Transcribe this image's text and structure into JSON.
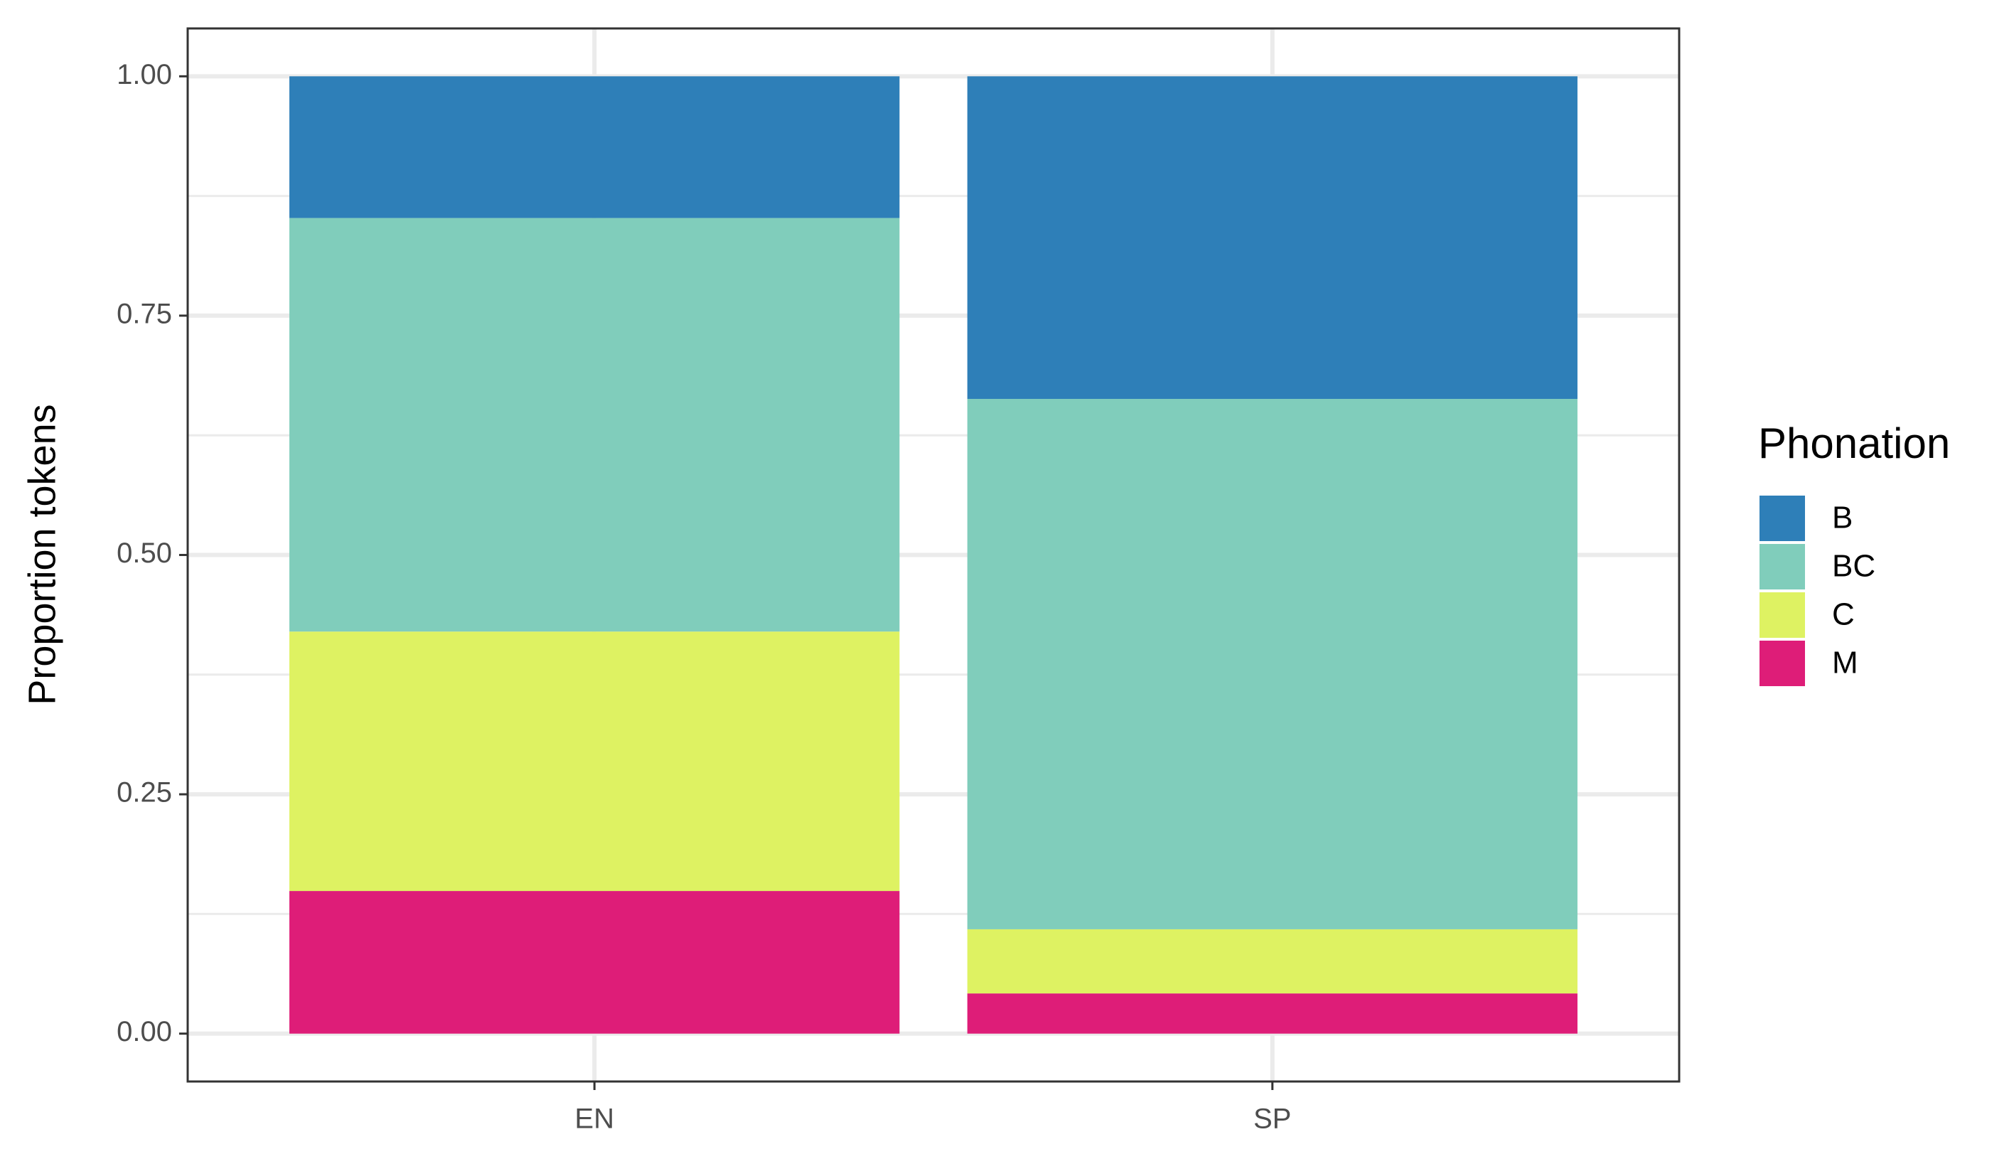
{
  "chart_data": {
    "type": "stacked-bar",
    "categories": [
      "EN",
      "SP"
    ],
    "series": [
      {
        "name": "B",
        "color": "#2e7fb8",
        "values": [
          0.148,
          0.337
        ]
      },
      {
        "name": "BC",
        "color": "#80cdbb",
        "values": [
          0.432,
          0.554
        ]
      },
      {
        "name": "C",
        "color": "#def262",
        "values": [
          0.271,
          0.067
        ]
      },
      {
        "name": "M",
        "color": "#de1d78",
        "values": [
          0.149,
          0.042
        ]
      }
    ],
    "y_label": "Proportion tokens",
    "legend_title": "Phonation",
    "legend_position": "right",
    "ylim": [
      -0.05,
      1.05
    ],
    "yticks": [
      {
        "value": 0,
        "label": "0.00"
      },
      {
        "value": 0.25,
        "label": "0.25"
      },
      {
        "value": 0.5,
        "label": "0.50"
      },
      {
        "value": 0.75,
        "label": "0.75"
      },
      {
        "value": 1,
        "label": "1.00"
      }
    ],
    "grid": true
  }
}
